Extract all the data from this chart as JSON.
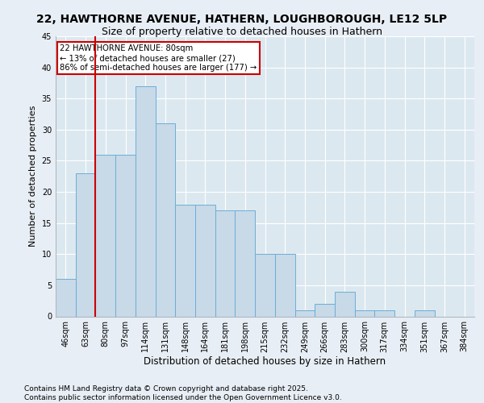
{
  "title1": "22, HAWTHORNE AVENUE, HATHERN, LOUGHBOROUGH, LE12 5LP",
  "title2": "Size of property relative to detached houses in Hathern",
  "xlabel": "Distribution of detached houses by size in Hathern",
  "ylabel": "Number of detached properties",
  "categories": [
    "46sqm",
    "63sqm",
    "80sqm",
    "97sqm",
    "114sqm",
    "131sqm",
    "148sqm",
    "164sqm",
    "181sqm",
    "198sqm",
    "215sqm",
    "232sqm",
    "249sqm",
    "266sqm",
    "283sqm",
    "300sqm",
    "317sqm",
    "334sqm",
    "351sqm",
    "367sqm",
    "384sqm"
  ],
  "values": [
    6,
    23,
    26,
    26,
    37,
    31,
    18,
    18,
    17,
    17,
    10,
    10,
    1,
    2,
    4,
    1,
    1,
    0,
    1,
    0,
    0
  ],
  "bar_color": "#c8d9e8",
  "bar_edge_color": "#6baed6",
  "vline_x_index": 2,
  "vline_color": "#cc0000",
  "annotation_text": "22 HAWTHORNE AVENUE: 80sqm\n← 13% of detached houses are smaller (27)\n86% of semi-detached houses are larger (177) →",
  "annotation_box_color": "#cc0000",
  "ylim": [
    0,
    45
  ],
  "yticks": [
    0,
    5,
    10,
    15,
    20,
    25,
    30,
    35,
    40,
    45
  ],
  "bg_color": "#e8eef5",
  "plot_bg_color": "#dce8f0",
  "footer": "Contains HM Land Registry data © Crown copyright and database right 2025.\nContains public sector information licensed under the Open Government Licence v3.0.",
  "title1_fontsize": 10,
  "title2_fontsize": 9,
  "tick_fontsize": 7,
  "ylabel_fontsize": 8,
  "xlabel_fontsize": 8.5,
  "footer_fontsize": 6.5
}
